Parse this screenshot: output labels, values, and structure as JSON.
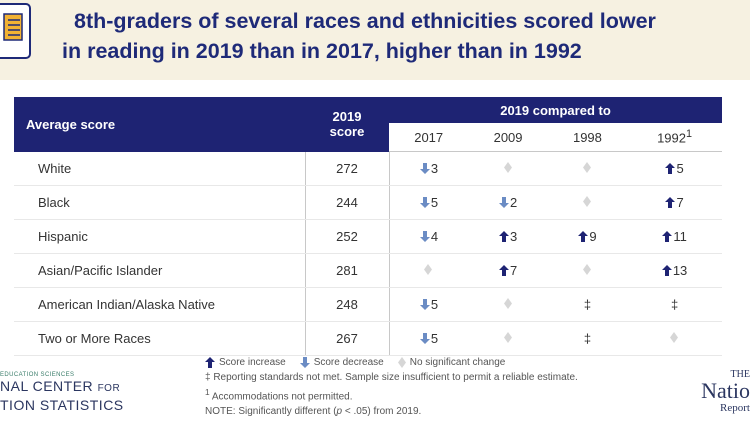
{
  "title": {
    "line1": "8th-graders of several races and ethnicities scored lower",
    "line2": "in reading in 2019 than in 2017, higher than in 1992"
  },
  "table": {
    "col_avg": "Average score",
    "col_2019_line1": "2019",
    "col_2019_line2": "score",
    "col_compared": "2019 compared to",
    "years": [
      "2017",
      "2009",
      "1998",
      "1992"
    ],
    "year_1992_sup": "1",
    "rows": [
      {
        "group": "White",
        "score": "272",
        "cells": [
          {
            "t": "down",
            "v": "3"
          },
          {
            "t": "ns",
            "v": ""
          },
          {
            "t": "ns",
            "v": ""
          },
          {
            "t": "up",
            "v": "5"
          }
        ]
      },
      {
        "group": "Black",
        "score": "244",
        "cells": [
          {
            "t": "down",
            "v": "5"
          },
          {
            "t": "down",
            "v": "2"
          },
          {
            "t": "ns",
            "v": ""
          },
          {
            "t": "up",
            "v": "7"
          }
        ]
      },
      {
        "group": "Hispanic",
        "score": "252",
        "cells": [
          {
            "t": "down",
            "v": "4"
          },
          {
            "t": "up",
            "v": "3"
          },
          {
            "t": "up",
            "v": "9"
          },
          {
            "t": "up",
            "v": "11"
          }
        ]
      },
      {
        "group": "Asian/Pacific Islander",
        "score": "281",
        "cells": [
          {
            "t": "ns",
            "v": ""
          },
          {
            "t": "up",
            "v": "7"
          },
          {
            "t": "ns",
            "v": ""
          },
          {
            "t": "up",
            "v": "13"
          }
        ]
      },
      {
        "group": "American Indian/Alaska Native",
        "score": "248",
        "cells": [
          {
            "t": "down",
            "v": "5"
          },
          {
            "t": "ns",
            "v": ""
          },
          {
            "t": "dd",
            "v": "‡"
          },
          {
            "t": "dd",
            "v": "‡"
          }
        ]
      },
      {
        "group": "Two or More Races",
        "score": "267",
        "cells": [
          {
            "t": "down",
            "v": "5"
          },
          {
            "t": "ns",
            "v": ""
          },
          {
            "t": "dd",
            "v": "‡"
          },
          {
            "t": "ns",
            "v": ""
          }
        ]
      }
    ]
  },
  "legend": {
    "increase": "Score increase",
    "decrease": "Score decrease",
    "no_change": "No significant change",
    "note1": "‡ Reporting standards not met. Sample size insufficient to permit a reliable estimate.",
    "note2_sup": "1",
    "note2": "Accommodations not permitted.",
    "note3_a": "NOTE: Significantly different (",
    "note3_p": "p",
    "note3_b": " < .05) from 2019."
  },
  "logos": {
    "nces_small": "EDUCATION SCIENCES",
    "nces_line1_a": "NAL CENTER",
    "nces_line1_b": "FOR",
    "nces_line2": "TION STATISTICS",
    "nr_a": "THE",
    "nr_b": "Natio",
    "nr_c": "Report"
  },
  "colors": {
    "navy": "#1e2373",
    "arrow": "#1e2373",
    "arrow_down": "#6b8cc4",
    "ns": "#d6d6d6",
    "header_bg": "#f6f1e1"
  }
}
